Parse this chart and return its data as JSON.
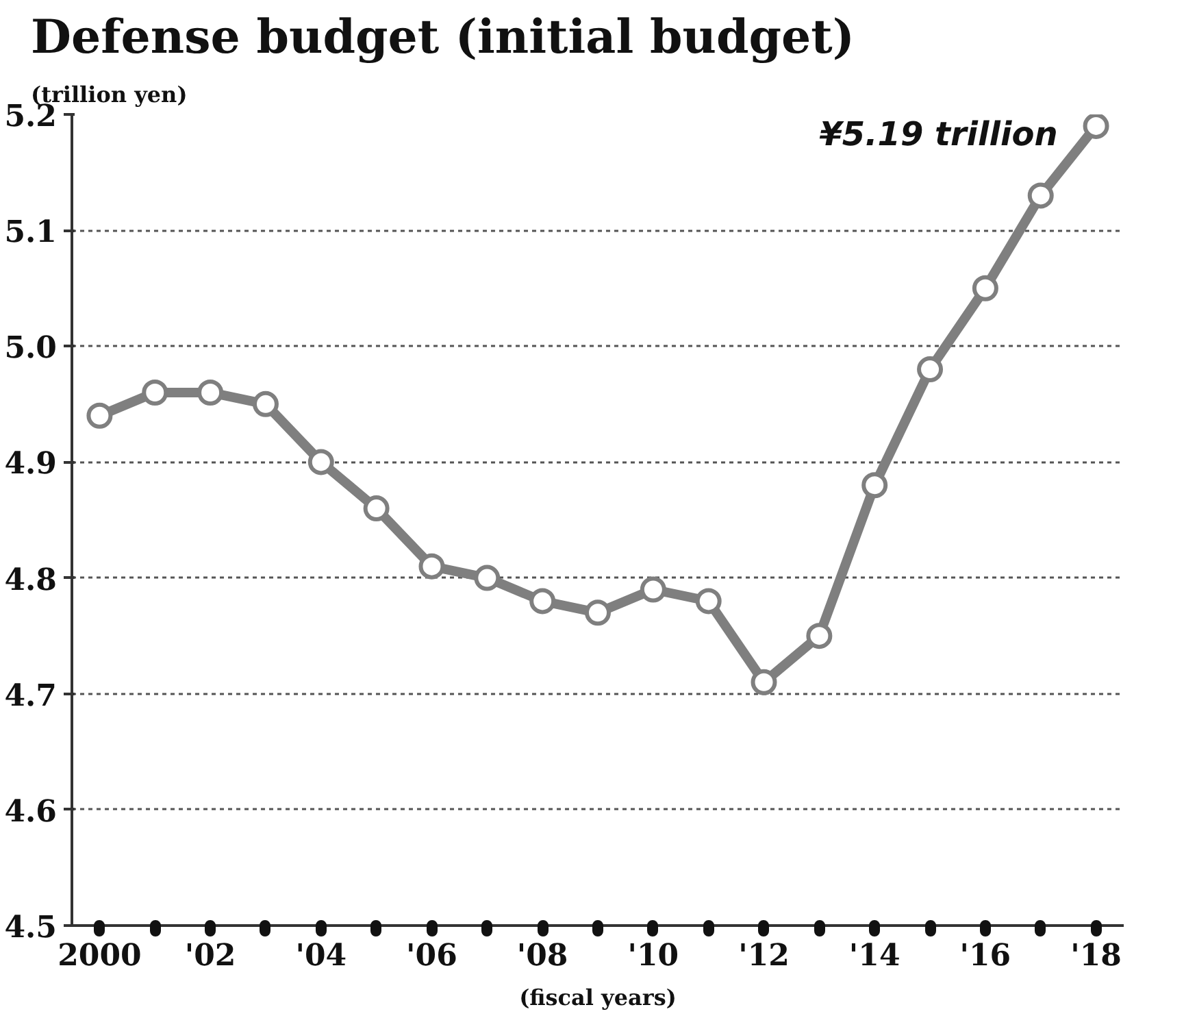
{
  "chart_data": {
    "type": "line",
    "title": "Defense budget",
    "subtitle": "(initial budget)",
    "ylabel": "(trillion yen)",
    "xlabel": "(fiscal years)",
    "x": [
      2000,
      2001,
      2002,
      2003,
      2004,
      2005,
      2006,
      2007,
      2008,
      2009,
      2010,
      2011,
      2012,
      2013,
      2014,
      2015,
      2016,
      2017,
      2018
    ],
    "series": [
      {
        "color": "#7f7f7f",
        "values": [
          4.94,
          4.96,
          4.96,
          4.95,
          4.9,
          4.86,
          4.81,
          4.8,
          4.78,
          4.77,
          4.79,
          4.78,
          4.71,
          4.75,
          4.88,
          4.98,
          5.05,
          5.13,
          5.19
        ]
      }
    ],
    "xlim": [
      1999.5,
      2018.5
    ],
    "xticks": [
      {
        "value": 2000,
        "label": "2000"
      },
      {
        "value": 2001,
        "label": null
      },
      {
        "value": 2002,
        "label": "'02"
      },
      {
        "value": 2003,
        "label": null
      },
      {
        "value": 2004,
        "label": "'04"
      },
      {
        "value": 2005,
        "label": null
      },
      {
        "value": 2006,
        "label": "'06"
      },
      {
        "value": 2007,
        "label": null
      },
      {
        "value": 2008,
        "label": "'08"
      },
      {
        "value": 2009,
        "label": null
      },
      {
        "value": 2010,
        "label": "'10"
      },
      {
        "value": 2011,
        "label": null
      },
      {
        "value": 2012,
        "label": "'12"
      },
      {
        "value": 2013,
        "label": null
      },
      {
        "value": 2014,
        "label": "'14"
      },
      {
        "value": 2015,
        "label": null
      },
      {
        "value": 2016,
        "label": "'16"
      },
      {
        "value": 2017,
        "label": null
      },
      {
        "value": 2018,
        "label": "'18"
      }
    ],
    "ylim": [
      4.5,
      5.2
    ],
    "yticks": [
      {
        "value": 4.5,
        "label": "4.5"
      },
      {
        "value": 4.6,
        "label": "4.6"
      },
      {
        "value": 4.7,
        "label": "4.7"
      },
      {
        "value": 4.8,
        "label": "4.8"
      },
      {
        "value": 4.9,
        "label": "4.9"
      },
      {
        "value": 5.0,
        "label": "5.0"
      },
      {
        "value": 5.1,
        "label": "5.1"
      },
      {
        "value": 5.2,
        "label": "5.2"
      }
    ],
    "grid": "y",
    "marker": "circle",
    "line_style": "solid",
    "annotations": [
      {
        "text": "¥5.19 trillion",
        "x": 2018,
        "y": 5.19
      }
    ]
  }
}
